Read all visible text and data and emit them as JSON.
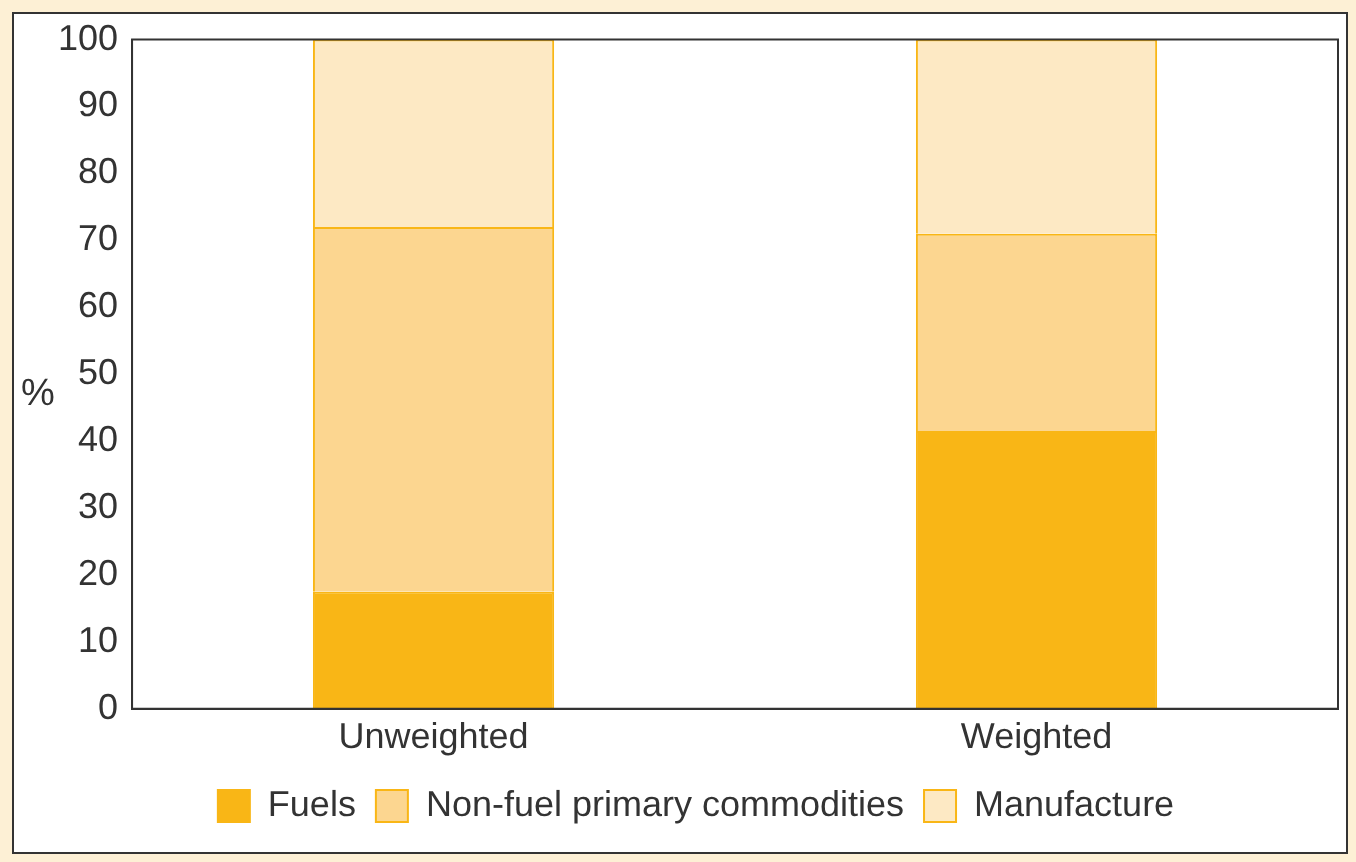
{
  "chart_data": {
    "type": "bar",
    "stacked": true,
    "ylabel": "%",
    "categories": [
      "Unweighted",
      "Weighted"
    ],
    "series": [
      {
        "name": "Fuels",
        "color": "#f9b616",
        "values": [
          17.5,
          41.5
        ]
      },
      {
        "name": "Non-fuel primary commodities",
        "color": "#fcd690",
        "values": [
          54.5,
          29.5
        ]
      },
      {
        "name": "Manufacture",
        "color": "#fde9c4",
        "values": [
          28,
          29
        ]
      }
    ],
    "ylim": [
      0,
      100
    ],
    "yticks": [
      0,
      10,
      20,
      30,
      40,
      50,
      60,
      70,
      80,
      90,
      100
    ],
    "grid": false,
    "legend": "bottom"
  }
}
